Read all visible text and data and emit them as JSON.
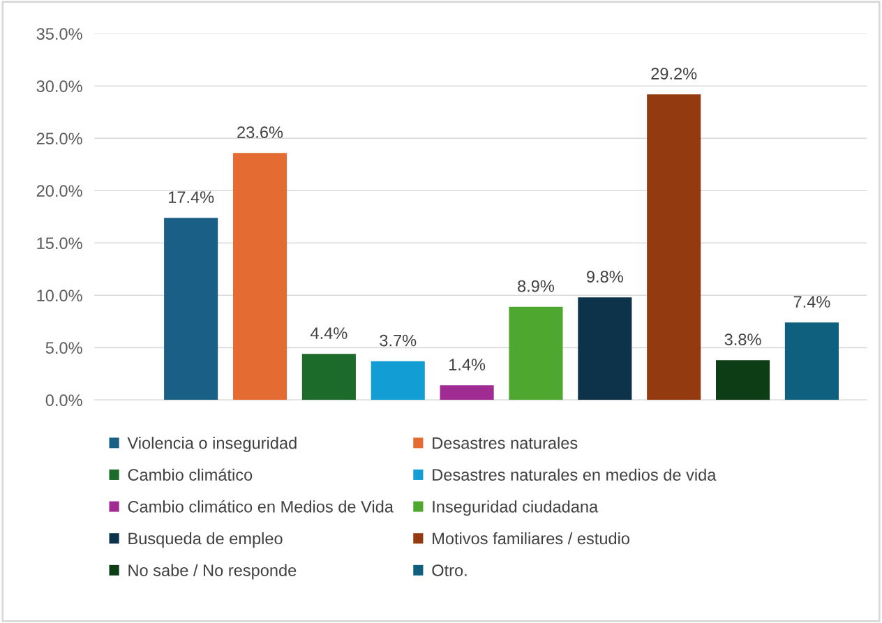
{
  "chart_data": {
    "type": "bar",
    "categories": [
      null,
      null,
      null,
      null,
      null,
      null,
      null,
      null,
      null,
      null
    ],
    "series": [
      {
        "name": "Violencia o inseguridad",
        "color": "#1a5f86",
        "values": [
          17.4,
          null,
          null,
          null,
          null,
          null,
          null,
          null,
          null,
          null
        ],
        "value_labels": [
          "17.4%",
          null,
          null,
          null,
          null,
          null,
          null,
          null,
          null,
          null
        ]
      },
      {
        "name": "Desastres naturales",
        "color": "#e46c32",
        "values": [
          null,
          23.6,
          null,
          null,
          null,
          null,
          null,
          null,
          null,
          null
        ],
        "value_labels": [
          null,
          "23.6%",
          null,
          null,
          null,
          null,
          null,
          null,
          null,
          null
        ]
      },
      {
        "name": "Cambio climático",
        "color": "#1c6b2a",
        "values": [
          null,
          null,
          4.4,
          null,
          null,
          null,
          null,
          null,
          null,
          null
        ],
        "value_labels": [
          null,
          null,
          "4.4%",
          null,
          null,
          null,
          null,
          null,
          null,
          null
        ]
      },
      {
        "name": "Desastres naturales en medios de vida",
        "color": "#139dd5",
        "values": [
          null,
          null,
          null,
          3.7,
          null,
          null,
          null,
          null,
          null,
          null
        ],
        "value_labels": [
          null,
          null,
          null,
          "3.7%",
          null,
          null,
          null,
          null,
          null,
          null
        ]
      },
      {
        "name": "Cambio climático en Medios de Vida",
        "color": "#a02b93",
        "values": [
          null,
          null,
          null,
          null,
          1.4,
          null,
          null,
          null,
          null,
          null
        ],
        "value_labels": [
          null,
          null,
          null,
          null,
          "1.4%",
          null,
          null,
          null,
          null,
          null
        ]
      },
      {
        "name": "Inseguridad ciudadana",
        "color": "#4ea72e",
        "values": [
          null,
          null,
          null,
          null,
          null,
          8.9,
          null,
          null,
          null,
          null
        ],
        "value_labels": [
          null,
          null,
          null,
          null,
          null,
          "8.9%",
          null,
          null,
          null,
          null
        ]
      },
      {
        "name": "Busqueda de empleo",
        "color": "#0c3349",
        "values": [
          null,
          null,
          null,
          null,
          null,
          null,
          9.8,
          null,
          null,
          null
        ],
        "value_labels": [
          null,
          null,
          null,
          null,
          null,
          null,
          "9.8%",
          null,
          null,
          null
        ]
      },
      {
        "name": "Motivos familiares / estudio",
        "color": "#933a10",
        "values": [
          null,
          null,
          null,
          null,
          null,
          null,
          null,
          29.2,
          null,
          null
        ],
        "value_labels": [
          null,
          null,
          null,
          null,
          null,
          null,
          null,
          "29.2%",
          null,
          null
        ]
      },
      {
        "name": "No sabe / No responde",
        "color": "#0c3d14",
        "values": [
          null,
          null,
          null,
          null,
          null,
          null,
          null,
          null,
          3.8,
          null
        ],
        "value_labels": [
          null,
          null,
          null,
          null,
          null,
          null,
          null,
          null,
          "3.8%",
          null
        ]
      },
      {
        "name": "Otro.",
        "color": "#0f5f7f",
        "values": [
          null,
          null,
          null,
          null,
          null,
          null,
          null,
          null,
          null,
          7.4
        ],
        "value_labels": [
          null,
          null,
          null,
          null,
          null,
          null,
          null,
          null,
          null,
          "7.4%"
        ]
      }
    ],
    "ylim": [
      0,
      35
    ],
    "yticks": [
      {
        "value": 0,
        "label": "0.0%"
      },
      {
        "value": 5,
        "label": "5.0%"
      },
      {
        "value": 10,
        "label": "10.0%"
      },
      {
        "value": 15,
        "label": "15.0%"
      },
      {
        "value": 20,
        "label": "20.0%"
      },
      {
        "value": 25,
        "label": "25.0%"
      },
      {
        "value": 30,
        "label": "30.0%"
      },
      {
        "value": 35,
        "label": "35.0%"
      }
    ],
    "grid": "y",
    "legend": "bottom",
    "stacked": true
  }
}
